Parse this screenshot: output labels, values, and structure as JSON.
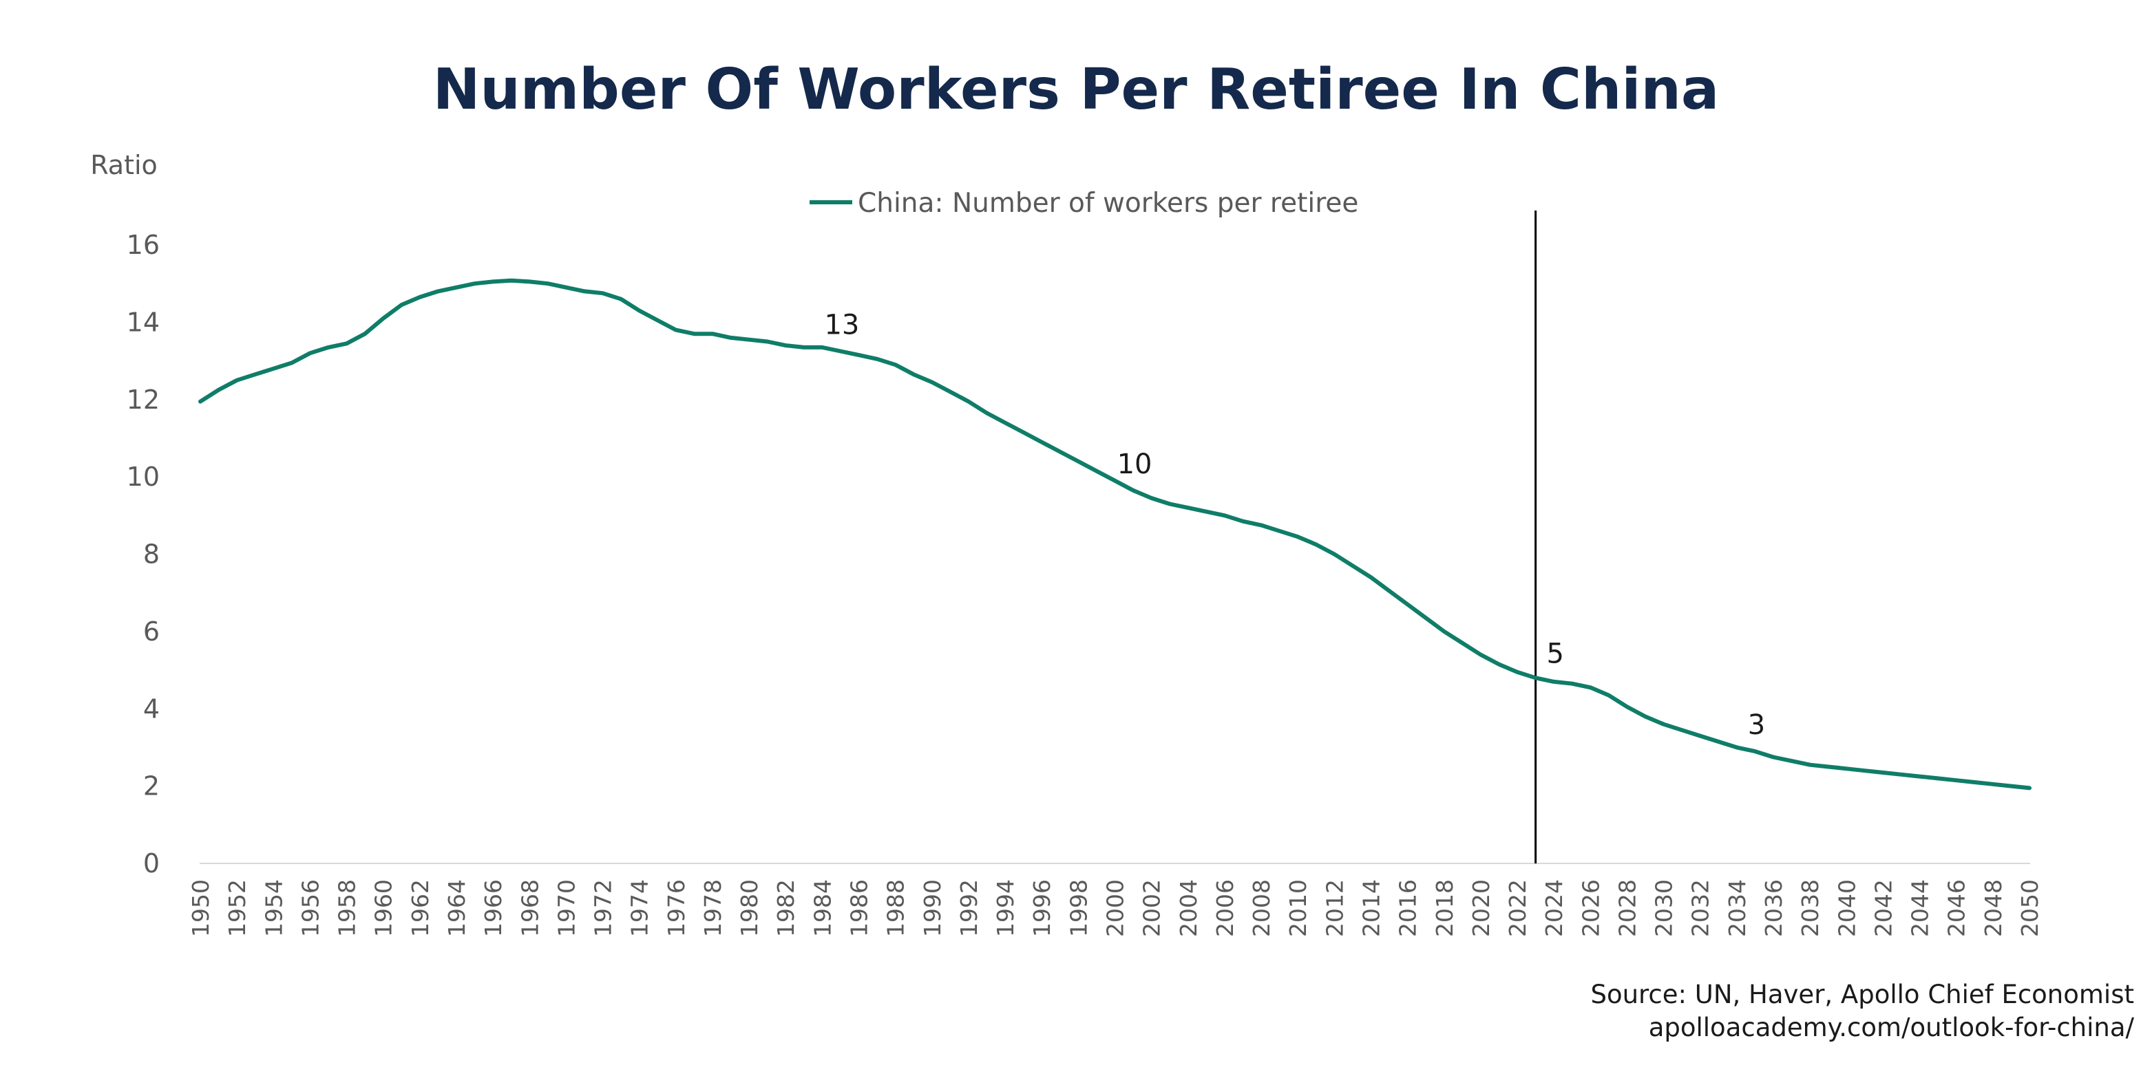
{
  "colors": {
    "title": "#14294b",
    "series": "#0f7d68",
    "axis_text": "#595959",
    "annotation": "#1a1a1a",
    "axis_line": "#d9d9d9",
    "divider": "#000000",
    "source": "#1a1a1a"
  },
  "source": {
    "line1": "Source: UN, Haver, Apollo Chief Economist",
    "line2": "apolloacademy.com/outlook-for-china/"
  },
  "chart_data": {
    "type": "line",
    "title": "Number Of Workers Per Retiree In China",
    "ylabel": "Ratio",
    "xlabel": "",
    "ylim": [
      0,
      16
    ],
    "yticks": [
      0,
      2,
      4,
      6,
      8,
      10,
      12,
      14,
      16
    ],
    "xlim": [
      1950,
      2050
    ],
    "xtick_labels": [
      "1950",
      "1952",
      "1954",
      "1956",
      "1958",
      "1960",
      "1962",
      "1964",
      "1966",
      "1968",
      "1970",
      "1972",
      "1974",
      "1976",
      "1978",
      "1980",
      "1982",
      "1984",
      "1986",
      "1988",
      "1990",
      "1992",
      "1994",
      "1996",
      "1998",
      "2000",
      "2002",
      "2004",
      "2006",
      "2008",
      "2010",
      "2012",
      "2014",
      "2016",
      "2018",
      "2020",
      "2022",
      "2024",
      "2026",
      "2028",
      "2030",
      "2032",
      "2034",
      "2036",
      "2038",
      "2040",
      "2042",
      "2044",
      "2046",
      "2048",
      "2050"
    ],
    "grid": false,
    "legend_position": "top-center",
    "vertical_marker_year": 2023,
    "series": [
      {
        "name": "China: Number of workers per retiree",
        "x": [
          1950,
          1951,
          1952,
          1953,
          1954,
          1955,
          1956,
          1957,
          1958,
          1959,
          1960,
          1961,
          1962,
          1963,
          1964,
          1965,
          1966,
          1967,
          1968,
          1969,
          1970,
          1971,
          1972,
          1973,
          1974,
          1975,
          1976,
          1977,
          1978,
          1979,
          1980,
          1981,
          1982,
          1983,
          1984,
          1985,
          1986,
          1987,
          1988,
          1989,
          1990,
          1991,
          1992,
          1993,
          1994,
          1995,
          1996,
          1997,
          1998,
          1999,
          2000,
          2001,
          2002,
          2003,
          2004,
          2005,
          2006,
          2007,
          2008,
          2009,
          2010,
          2011,
          2012,
          2013,
          2014,
          2015,
          2016,
          2017,
          2018,
          2019,
          2020,
          2021,
          2022,
          2023,
          2024,
          2025,
          2026,
          2027,
          2028,
          2029,
          2030,
          2031,
          2032,
          2033,
          2034,
          2035,
          2036,
          2037,
          2038,
          2039,
          2040,
          2041,
          2042,
          2043,
          2044,
          2045,
          2046,
          2047,
          2048,
          2049,
          2050
        ],
        "values": [
          11.95,
          12.25,
          12.5,
          12.65,
          12.8,
          12.95,
          13.2,
          13.35,
          13.45,
          13.7,
          14.1,
          14.45,
          14.65,
          14.8,
          14.9,
          15.0,
          15.05,
          15.08,
          15.05,
          15.0,
          14.9,
          14.8,
          14.75,
          14.6,
          14.3,
          14.05,
          13.8,
          13.7,
          13.7,
          13.6,
          13.55,
          13.5,
          13.4,
          13.35,
          13.35,
          13.25,
          13.15,
          13.05,
          12.9,
          12.65,
          12.45,
          12.2,
          11.95,
          11.65,
          11.4,
          11.15,
          10.9,
          10.65,
          10.4,
          10.15,
          9.9,
          9.65,
          9.45,
          9.3,
          9.2,
          9.1,
          9.0,
          8.85,
          8.75,
          8.6,
          8.45,
          8.25,
          8.0,
          7.7,
          7.4,
          7.05,
          6.7,
          6.35,
          6.0,
          5.7,
          5.4,
          5.15,
          4.95,
          4.8,
          4.7,
          4.65,
          4.55,
          4.35,
          4.05,
          3.8,
          3.6,
          3.45,
          3.3,
          3.15,
          3.0,
          2.9,
          2.75,
          2.65,
          2.55,
          2.5,
          2.45,
          2.4,
          2.35,
          2.3,
          2.25,
          2.2,
          2.15,
          2.1,
          2.05,
          2.0,
          1.95
        ]
      }
    ],
    "annotations": [
      {
        "year": 1985,
        "value": 13.3,
        "text": "13"
      },
      {
        "year": 2001,
        "value": 9.7,
        "text": "10"
      },
      {
        "year": 2024,
        "value": 4.8,
        "text": "5"
      },
      {
        "year": 2035,
        "value": 2.95,
        "text": "3"
      }
    ]
  }
}
